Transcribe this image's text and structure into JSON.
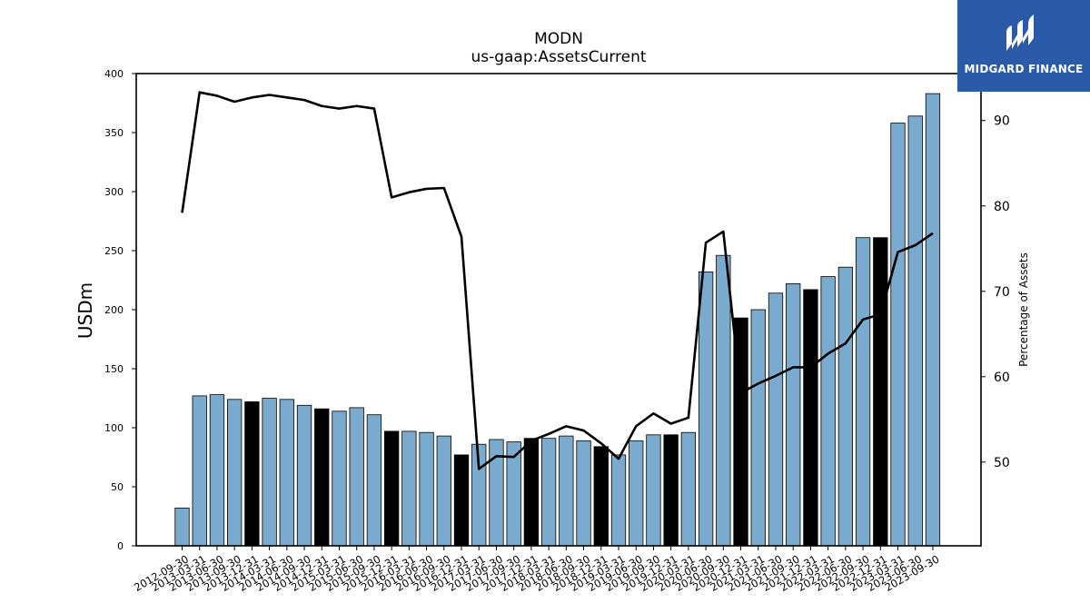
{
  "logo": {
    "brand": "MIDGARD FINANCE",
    "icon": "midgard-logo-icon"
  },
  "chart_data": {
    "type": "bar",
    "title": "MODN",
    "subtitle": "us-gaap:AssetsCurrent",
    "ylabel": "USDm",
    "y2label": "Percentage of Assets",
    "ylim": [
      0,
      400
    ],
    "y2lim": [
      40.2,
      95.5
    ],
    "yticks": [
      "0",
      "50",
      "100",
      "150",
      "200",
      "250",
      "300",
      "350",
      "400"
    ],
    "y2ticks": [
      "50",
      "60",
      "70",
      "80",
      "90"
    ],
    "colors": {
      "bar": "#7aabcf",
      "highlight": "#000000",
      "line": "#000000",
      "edge": "#000000"
    },
    "categories": [
      "2012-09-30",
      "2013-03-31",
      "2013-06-30",
      "2013-09-30",
      "2013-12-31",
      "2014-03-31",
      "2014-06-30",
      "2014-09-30",
      "2014-12-31",
      "2015-03-31",
      "2015-06-30",
      "2015-09-30",
      "2015-12-31",
      "2016-03-31",
      "2016-06-30",
      "2016-09-30",
      "2016-12-31",
      "2017-03-31",
      "2017-06-30",
      "2017-09-30",
      "2017-12-31",
      "2018-03-31",
      "2018-06-30",
      "2018-09-30",
      "2018-12-31",
      "2019-03-31",
      "2019-06-30",
      "2019-09-30",
      "2019-12-31",
      "2020-03-31",
      "2020-06-30",
      "2020-09-30",
      "2020-12-31",
      "2021-03-31",
      "2021-06-30",
      "2021-09-30",
      "2021-12-31",
      "2022-03-31",
      "2022-06-30",
      "2022-09-30",
      "2022-12-31",
      "2023-03-31",
      "2023-06-30",
      "2023-09-30"
    ],
    "series": [
      {
        "type": "bar",
        "values": [
          32,
          127,
          128,
          124,
          122,
          125,
          124,
          119,
          116,
          114,
          117,
          111,
          97,
          97,
          96,
          93,
          77,
          86,
          90,
          88,
          91,
          91,
          93,
          89,
          84,
          77,
          89,
          94,
          94,
          96,
          232,
          246,
          193,
          200,
          214,
          222,
          217,
          228,
          236,
          261,
          261,
          358,
          364,
          383
        ],
        "highlight": [
          false,
          false,
          false,
          false,
          true,
          false,
          false,
          false,
          true,
          false,
          false,
          false,
          true,
          false,
          false,
          false,
          true,
          false,
          false,
          false,
          true,
          false,
          false,
          false,
          true,
          false,
          false,
          false,
          true,
          false,
          false,
          false,
          true,
          false,
          false,
          false,
          true,
          false,
          false,
          false,
          true,
          false,
          false,
          false
        ]
      },
      {
        "type": "line",
        "axis": "right",
        "values": [
          79.2,
          93.3,
          92.9,
          92.2,
          92.7,
          93.0,
          92.7,
          92.4,
          91.7,
          91.4,
          91.7,
          91.4,
          81.0,
          81.6,
          82.0,
          82.1,
          76.4,
          49.2,
          50.7,
          50.6,
          52.5,
          53.3,
          54.2,
          53.7,
          52.2,
          50.4,
          54.2,
          55.7,
          54.5,
          55.2,
          75.7,
          77.0,
          58.1,
          59.2,
          60.1,
          61.1,
          61.1,
          62.7,
          63.9,
          66.7,
          67.3,
          74.6,
          75.4,
          76.8
        ]
      }
    ]
  }
}
